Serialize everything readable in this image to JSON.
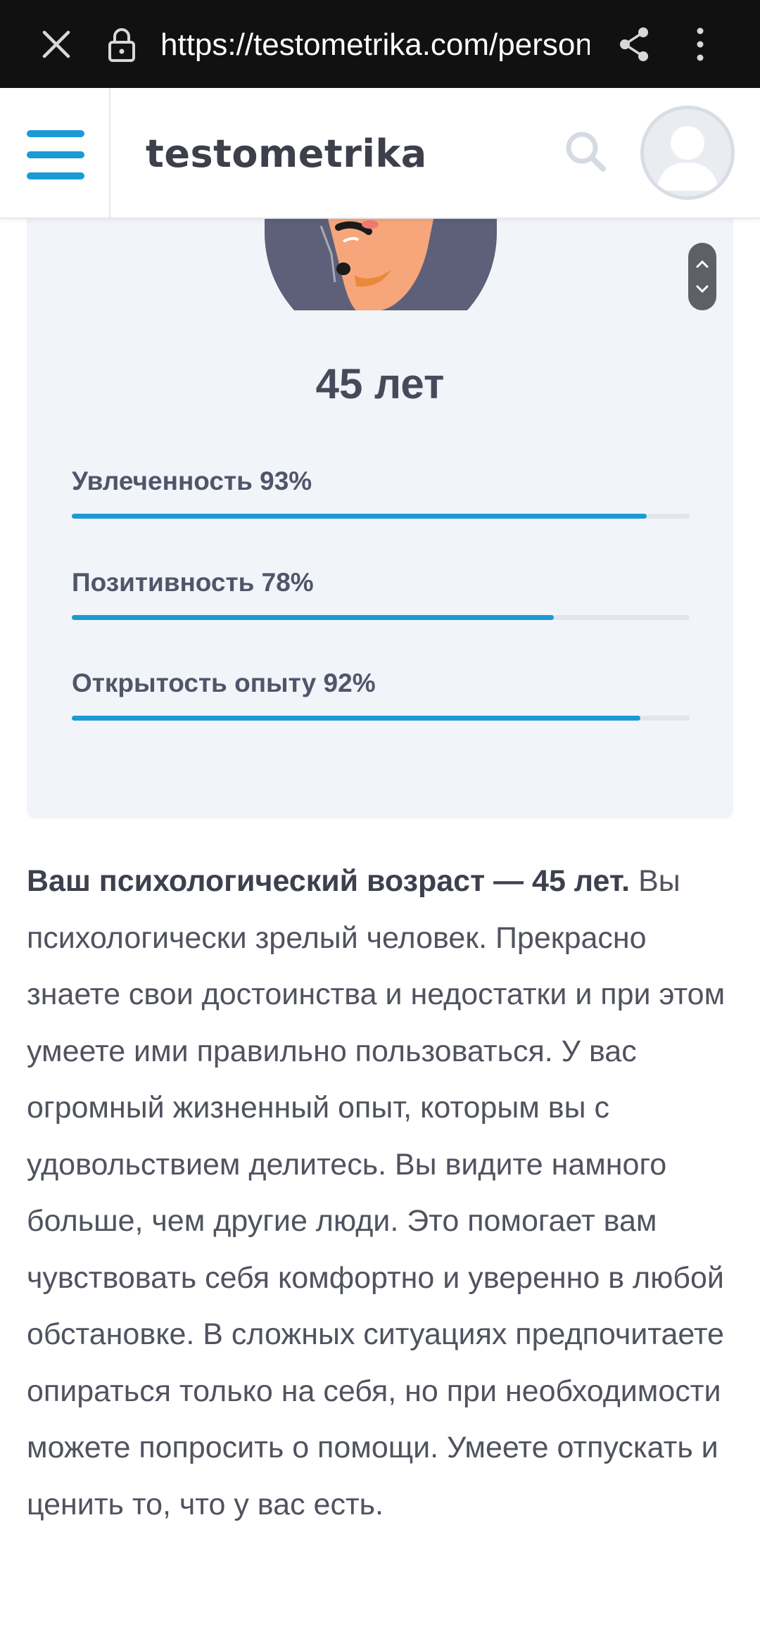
{
  "browser": {
    "url": "https://testometrika.com/person",
    "icons": {
      "close": "close-icon",
      "lock": "lock-icon",
      "share": "share-icon",
      "more": "more-vert-icon"
    }
  },
  "header": {
    "logo": "testometrika",
    "icons": {
      "menu": "hamburger-menu-icon",
      "search": "search-icon",
      "avatar": "user-avatar-icon"
    }
  },
  "result": {
    "age_title": "45 лет",
    "metrics": [
      {
        "label": "Увлеченность 93%",
        "value": 93
      },
      {
        "label": "Позитивность 78%",
        "value": 78
      },
      {
        "label": "Открытость опыту 92%",
        "value": 92
      }
    ]
  },
  "description": {
    "lead": "Ваш психологический возраст — 45 лет.",
    "body": " Вы психологически зрелый человек. Прекрасно знаете свои достоинства и недостатки и при этом умеете ими правильно пользоваться. У вас огромный жизненный опыт, которым вы с удовольствием делитесь. Вы видите намного больше, чем другие люди. Это помогает вам чувствовать себя комфортно и уверенно в любой обстановке. В сложных ситуациях предпочитаете опираться только на себя, но при необходимости можете попросить о помощи. Умеете отпускать и ценить то, что у вас есть."
  },
  "colors": {
    "accent": "#1a9ad6",
    "track": "#e2e6ec",
    "card": "#f1f4f8",
    "text": "#50535f"
  }
}
